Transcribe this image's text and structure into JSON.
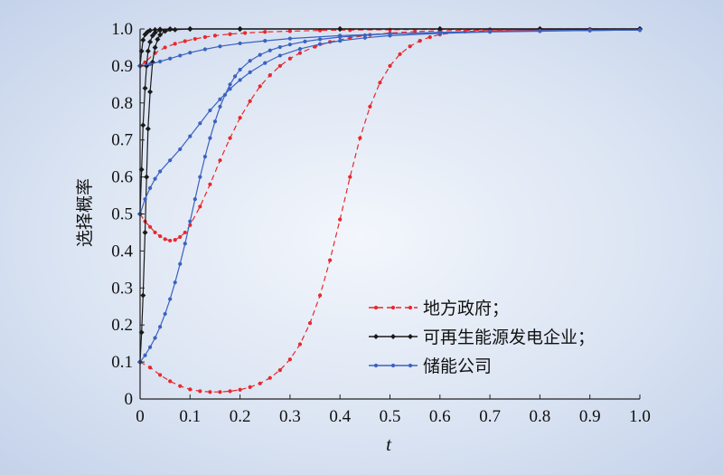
{
  "chart_data": {
    "type": "line",
    "xlabel": "t",
    "ylabel": "选择概率",
    "xlim": [
      0,
      1.0
    ],
    "ylim": [
      0,
      1.0
    ],
    "x_ticks": [
      "0",
      "0.1",
      "0.2",
      "0.3",
      "0.4",
      "0.5",
      "0.6",
      "0.7",
      "0.8",
      "0.9",
      "1.0"
    ],
    "y_ticks": [
      "0",
      "0.1",
      "0.2",
      "0.3",
      "0.4",
      "0.5",
      "0.6",
      "0.7",
      "0.8",
      "0.9",
      "1.0"
    ],
    "legend_position": "bottom-right",
    "grid": false,
    "series": [
      {
        "name": "地方政府；",
        "color": "#e8282c",
        "line_style": "dashed",
        "marker": "dot",
        "curves": [
          {
            "x": [
              0,
              0.01,
              0.03,
              0.05,
              0.07,
              0.09,
              0.11,
              0.13,
              0.15,
              0.18,
              0.21,
              0.25,
              0.3,
              0.36,
              0.42,
              0.5,
              0.6,
              0.7,
              0.8,
              0.9,
              1.0
            ],
            "y": [
              0.9,
              0.91,
              0.935,
              0.95,
              0.96,
              0.967,
              0.973,
              0.978,
              0.982,
              0.986,
              0.989,
              0.992,
              0.994,
              0.996,
              0.997,
              0.998,
              0.999,
              0.999,
              1.0,
              1.0,
              1.0
            ]
          },
          {
            "x": [
              0,
              0.01,
              0.02,
              0.03,
              0.04,
              0.05,
              0.06,
              0.07,
              0.08,
              0.09,
              0.1,
              0.12,
              0.14,
              0.16,
              0.18,
              0.2,
              0.22,
              0.24,
              0.26,
              0.28,
              0.3,
              0.32,
              0.35,
              0.38,
              0.42,
              0.46,
              0.5,
              0.55,
              0.6,
              0.7,
              0.8,
              0.9,
              1.0
            ],
            "y": [
              0.5,
              0.48,
              0.465,
              0.45,
              0.44,
              0.432,
              0.428,
              0.43,
              0.438,
              0.45,
              0.47,
              0.52,
              0.58,
              0.645,
              0.705,
              0.76,
              0.805,
              0.845,
              0.875,
              0.9,
              0.92,
              0.935,
              0.952,
              0.965,
              0.976,
              0.984,
              0.989,
              0.993,
              0.995,
              0.997,
              0.998,
              0.999,
              1.0
            ]
          },
          {
            "x": [
              0,
              0.02,
              0.04,
              0.06,
              0.08,
              0.1,
              0.12,
              0.14,
              0.16,
              0.18,
              0.2,
              0.22,
              0.24,
              0.26,
              0.28,
              0.3,
              0.32,
              0.34,
              0.36,
              0.38,
              0.4,
              0.42,
              0.44,
              0.46,
              0.48,
              0.5,
              0.52,
              0.54,
              0.56,
              0.58,
              0.6,
              0.65,
              0.7,
              0.8,
              0.9,
              1.0
            ],
            "y": [
              0.1,
              0.085,
              0.065,
              0.048,
              0.035,
              0.026,
              0.021,
              0.019,
              0.019,
              0.021,
              0.025,
              0.032,
              0.042,
              0.057,
              0.078,
              0.107,
              0.148,
              0.205,
              0.28,
              0.375,
              0.485,
              0.6,
              0.705,
              0.79,
              0.855,
              0.9,
              0.932,
              0.953,
              0.968,
              0.978,
              0.985,
              0.993,
              0.996,
              0.998,
              0.999,
              1.0
            ]
          }
        ]
      },
      {
        "name": "可再生能源发电企业；",
        "color": "#1a1a1a",
        "line_style": "solid",
        "marker": "diamond",
        "curves": [
          {
            "x": [
              0,
              0.003,
              0.006,
              0.01,
              0.015,
              0.02,
              0.03,
              0.04,
              0.06,
              0.1,
              0.2,
              0.4,
              0.6,
              0.8,
              1.0
            ],
            "y": [
              0.9,
              0.94,
              0.97,
              0.985,
              0.992,
              0.996,
              0.998,
              0.999,
              1.0,
              1.0,
              1.0,
              1.0,
              1.0,
              1.0,
              1.0
            ]
          },
          {
            "x": [
              0,
              0.003,
              0.006,
              0.01,
              0.013,
              0.016,
              0.02,
              0.025,
              0.03,
              0.04,
              0.06,
              0.1,
              0.2,
              0.4,
              0.6,
              0.8,
              1.0
            ],
            "y": [
              0.5,
              0.62,
              0.74,
              0.84,
              0.9,
              0.94,
              0.965,
              0.982,
              0.99,
              0.996,
              0.999,
              1.0,
              1.0,
              1.0,
              1.0,
              1.0,
              1.0
            ]
          },
          {
            "x": [
              0,
              0.003,
              0.006,
              0.01,
              0.013,
              0.016,
              0.02,
              0.025,
              0.03,
              0.035,
              0.04,
              0.05,
              0.07,
              0.1,
              0.2,
              0.4,
              0.6,
              0.8,
              1.0
            ],
            "y": [
              0.1,
              0.18,
              0.28,
              0.45,
              0.6,
              0.73,
              0.83,
              0.91,
              0.95,
              0.972,
              0.984,
              0.994,
              0.998,
              1.0,
              1.0,
              1.0,
              1.0,
              1.0,
              1.0
            ]
          }
        ]
      },
      {
        "name": "储能公司",
        "color": "#3a62c0",
        "line_style": "solid",
        "marker": "dot",
        "curves": [
          {
            "x": [
              0,
              0.02,
              0.04,
              0.06,
              0.08,
              0.1,
              0.13,
              0.16,
              0.2,
              0.25,
              0.3,
              0.4,
              0.5,
              0.6,
              0.7,
              0.8,
              0.9,
              1.0
            ],
            "y": [
              0.9,
              0.905,
              0.912,
              0.92,
              0.928,
              0.936,
              0.945,
              0.953,
              0.961,
              0.968,
              0.974,
              0.982,
              0.987,
              0.99,
              0.993,
              0.995,
              0.996,
              0.997
            ]
          },
          {
            "x": [
              0,
              0.01,
              0.02,
              0.03,
              0.04,
              0.06,
              0.08,
              0.1,
              0.12,
              0.14,
              0.16,
              0.18,
              0.2,
              0.22,
              0.25,
              0.28,
              0.32,
              0.36,
              0.4,
              0.45,
              0.5,
              0.6,
              0.7,
              0.8,
              0.9,
              1.0
            ],
            "y": [
              0.5,
              0.54,
              0.57,
              0.595,
              0.615,
              0.645,
              0.675,
              0.71,
              0.745,
              0.78,
              0.81,
              0.838,
              0.862,
              0.883,
              0.908,
              0.928,
              0.946,
              0.959,
              0.968,
              0.976,
              0.982,
              0.988,
              0.992,
              0.994,
              0.996,
              0.997
            ]
          },
          {
            "x": [
              0,
              0.01,
              0.02,
              0.03,
              0.04,
              0.05,
              0.06,
              0.07,
              0.08,
              0.09,
              0.1,
              0.11,
              0.12,
              0.13,
              0.14,
              0.15,
              0.16,
              0.17,
              0.18,
              0.19,
              0.2,
              0.22,
              0.24,
              0.26,
              0.28,
              0.3,
              0.33,
              0.36,
              0.4,
              0.45,
              0.5,
              0.6,
              0.7,
              0.8,
              0.9,
              1.0
            ],
            "y": [
              0.1,
              0.118,
              0.14,
              0.165,
              0.195,
              0.23,
              0.27,
              0.315,
              0.365,
              0.42,
              0.48,
              0.54,
              0.6,
              0.655,
              0.705,
              0.75,
              0.79,
              0.822,
              0.85,
              0.872,
              0.89,
              0.914,
              0.93,
              0.942,
              0.951,
              0.958,
              0.966,
              0.972,
              0.978,
              0.983,
              0.987,
              0.991,
              0.993,
              0.995,
              0.996,
              0.997
            ]
          }
        ]
      }
    ]
  }
}
